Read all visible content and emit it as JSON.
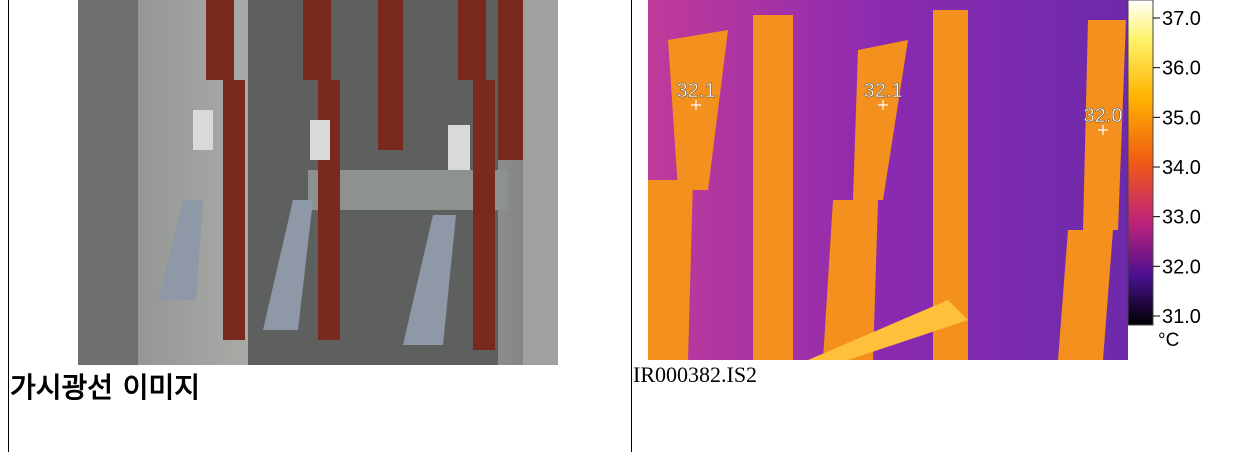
{
  "left": {
    "caption": "가시광선 이미지"
  },
  "right": {
    "markers": [
      {
        "label": "32.1"
      },
      {
        "label": "32.1"
      },
      {
        "label": "32.0"
      }
    ],
    "scale": {
      "ticks": [
        "37.0",
        "36.0",
        "35.0",
        "34.0",
        "33.0",
        "32.0",
        "31.0"
      ],
      "unit": "°C"
    },
    "caption": "IR000382.IS2"
  }
}
